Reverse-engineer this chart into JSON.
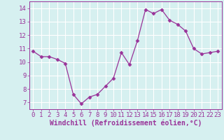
{
  "x": [
    0,
    1,
    2,
    3,
    4,
    5,
    6,
    7,
    8,
    9,
    10,
    11,
    12,
    13,
    14,
    15,
    16,
    17,
    18,
    19,
    20,
    21,
    22,
    23
  ],
  "y": [
    10.8,
    10.4,
    10.4,
    10.2,
    9.9,
    7.6,
    6.9,
    7.4,
    7.6,
    8.2,
    8.8,
    10.7,
    9.8,
    11.6,
    13.9,
    13.6,
    13.9,
    13.1,
    12.8,
    12.3,
    11.0,
    10.6,
    10.7,
    10.8
  ],
  "xlabel": "Windchill (Refroidissement éolien,°C)",
  "xlim": [
    -0.5,
    23.5
  ],
  "ylim": [
    6.5,
    14.5
  ],
  "yticks": [
    7,
    8,
    9,
    10,
    11,
    12,
    13,
    14
  ],
  "xticks": [
    0,
    1,
    2,
    3,
    4,
    5,
    6,
    7,
    8,
    9,
    10,
    11,
    12,
    13,
    14,
    15,
    16,
    17,
    18,
    19,
    20,
    21,
    22,
    23
  ],
  "line_color": "#993399",
  "marker": "D",
  "marker_size": 2.5,
  "bg_color": "#d6f0f0",
  "grid_color": "#ffffff",
  "tick_color": "#993399",
  "label_color": "#993399",
  "font_size": 6.5,
  "xlabel_fontsize": 7.0
}
